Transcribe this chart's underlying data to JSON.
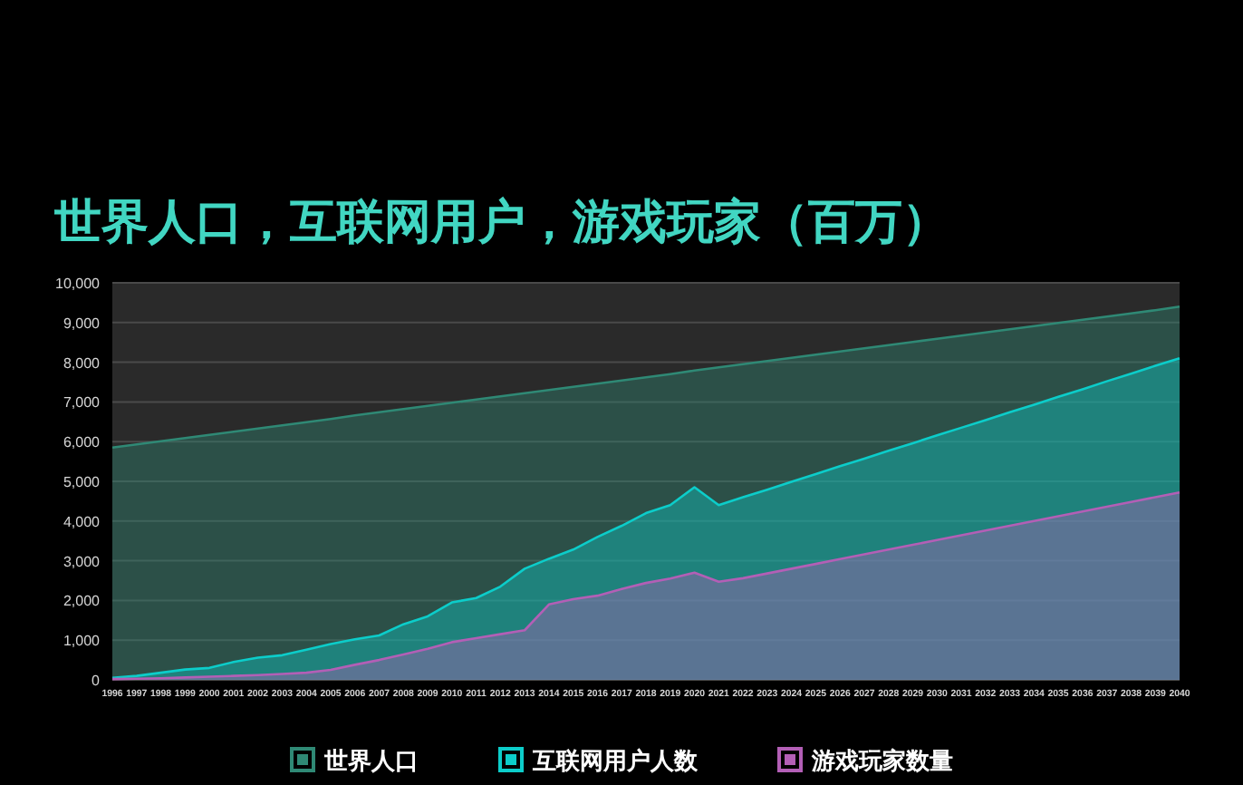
{
  "chart_data": {
    "type": "area",
    "title": "世界人口，互联网用户，游戏玩家（百万）",
    "categories": [
      "1996",
      "1997",
      "1998",
      "1999",
      "2000",
      "2001",
      "2002",
      "2003",
      "2004",
      "2005",
      "2006",
      "2007",
      "2008",
      "2009",
      "2010",
      "2011",
      "2012",
      "2013",
      "2014",
      "2015",
      "2016",
      "2017",
      "2018",
      "2019",
      "2020",
      "2021",
      "2022",
      "2023",
      "2024",
      "2025",
      "2026",
      "2027",
      "2028",
      "2029",
      "2030",
      "2031",
      "2032",
      "2033",
      "2034",
      "2035",
      "2036",
      "2037",
      "2038",
      "2039",
      "2040"
    ],
    "series": [
      {
        "name": "世界人口",
        "color": "#2f8975",
        "values": [
          5850,
          5930,
          6010,
          6090,
          6170,
          6250,
          6330,
          6410,
          6490,
          6570,
          6660,
          6740,
          6820,
          6900,
          6980,
          7060,
          7140,
          7220,
          7300,
          7380,
          7460,
          7540,
          7620,
          7700,
          7790,
          7870,
          7950,
          8030,
          8110,
          8190,
          8270,
          8350,
          8430,
          8510,
          8590,
          8670,
          8750,
          8830,
          8910,
          8990,
          9070,
          9150,
          9230,
          9310,
          9400
        ]
      },
      {
        "name": "互联网用户人数",
        "color": "#0ccdca",
        "values": [
          50,
          100,
          180,
          260,
          300,
          450,
          560,
          620,
          760,
          900,
          1020,
          1120,
          1400,
          1600,
          1950,
          2060,
          2350,
          2800,
          3050,
          3280,
          3600,
          3880,
          4200,
          4400,
          4850,
          4400,
          4600,
          4790,
          4990,
          5180,
          5380,
          5570,
          5770,
          5960,
          6160,
          6350,
          6540,
          6740,
          6930,
          7130,
          7320,
          7520,
          7710,
          7910,
          8100
        ]
      },
      {
        "name": "游戏玩家数量",
        "color": "#b35fb6",
        "values": [
          20,
          30,
          40,
          60,
          80,
          100,
          120,
          150,
          180,
          250,
          380,
          500,
          640,
          780,
          950,
          1050,
          1150,
          1250,
          1900,
          2030,
          2120,
          2290,
          2440,
          2550,
          2700,
          2470,
          2560,
          2680,
          2800,
          2920,
          3040,
          3160,
          3280,
          3400,
          3520,
          3640,
          3760,
          3880,
          4000,
          4120,
          4240,
          4360,
          4480,
          4600,
          4720
        ]
      }
    ],
    "ylim": [
      0,
      10000
    ],
    "yticks": [
      0,
      {
        "value": 1000,
        "label": "1,000"
      },
      {
        "value": 2000,
        "label": "2,000"
      },
      {
        "value": 3000,
        "label": "3,000"
      },
      {
        "value": 4000,
        "label": "4,000"
      },
      {
        "value": 5000,
        "label": "5,000"
      },
      {
        "value": 6000,
        "label": "6,000"
      },
      {
        "value": 7000,
        "label": "7,000"
      },
      {
        "value": 8000,
        "label": "8,000"
      },
      {
        "value": 9000,
        "label": "9,000"
      },
      {
        "value": 10000,
        "label": "10,000"
      }
    ],
    "grid": "y",
    "legend": "bottom"
  }
}
